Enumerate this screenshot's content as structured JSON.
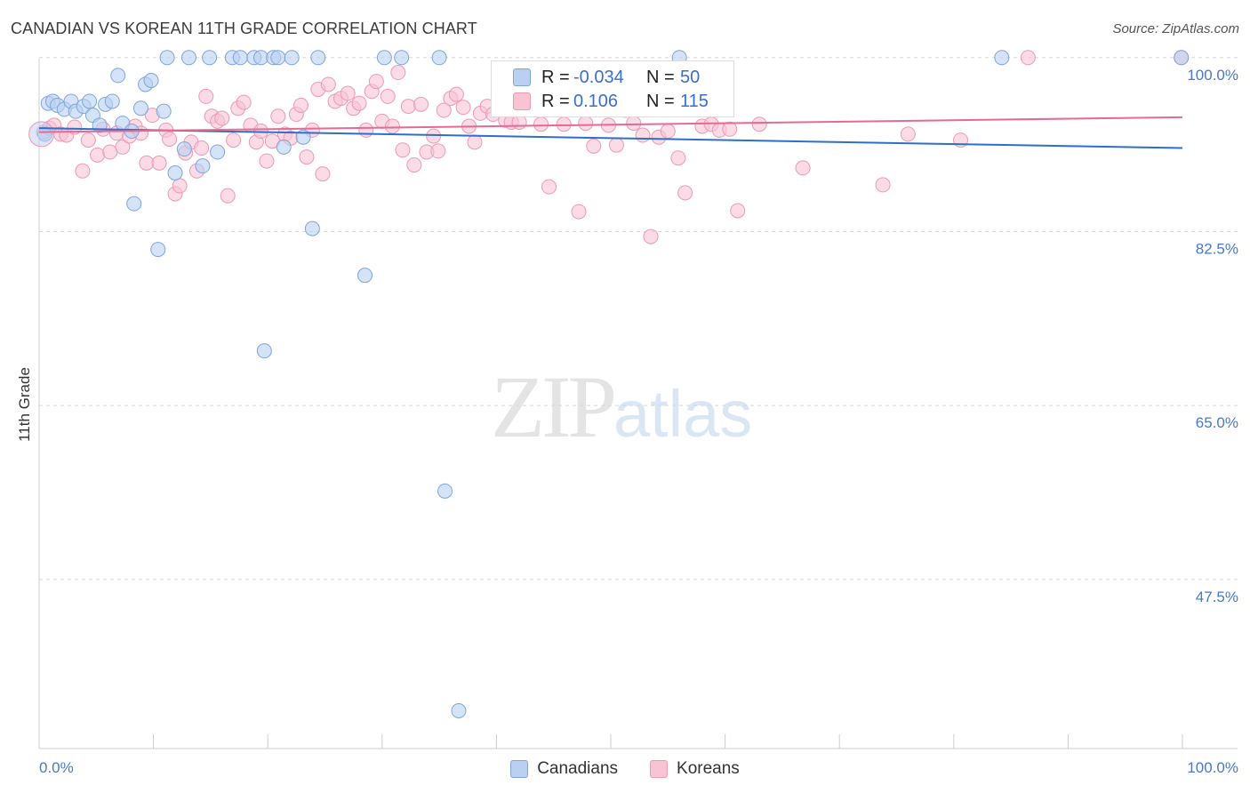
{
  "header": {
    "title": "CANADIAN VS KOREAN 11TH GRADE CORRELATION CHART",
    "source": "Source: ZipAtlas.com"
  },
  "watermark": {
    "zip": "ZIP",
    "atlas": "atlas"
  },
  "legend": {
    "canadians": {
      "r_label": "R =",
      "r_value": "-0.034",
      "n_label": "N =",
      "n_value": "50"
    },
    "koreans": {
      "r_label": "R =",
      "r_value": "0.106",
      "n_label": "N =",
      "n_value": "115"
    }
  },
  "bottom_legend": {
    "canadians": "Canadians",
    "koreans": "Koreans"
  },
  "colors": {
    "canadians_fill": "#b9d0f2",
    "canadians_stroke": "#7fa5dc",
    "canadians_line": "#2f6fcc",
    "koreans_fill": "#f8c3d3",
    "koreans_stroke": "#ec9ab4",
    "koreans_line": "#e56b93",
    "tick_text": "#4a78c8",
    "grid": "#d8d8d8"
  },
  "chart_data": {
    "type": "scatter",
    "title": "CANADIAN VS KOREAN 11TH GRADE CORRELATION CHART",
    "xlabel": "",
    "ylabel": "11th Grade",
    "xlim": [
      0,
      100
    ],
    "ylim": [
      30.5,
      101.5
    ],
    "x_tick_labels": [
      "0.0%",
      "100.0%"
    ],
    "y_ticks": [
      {
        "value": 100.0,
        "label": "100.0%"
      },
      {
        "value": 82.5,
        "label": "82.5%"
      },
      {
        "value": 65.0,
        "label": "65.0%"
      },
      {
        "value": 47.5,
        "label": "47.5%"
      }
    ],
    "trend_lines": [
      {
        "series": "Canadians",
        "start": [
          0,
          92.9
        ],
        "end": [
          100,
          90.9
        ]
      },
      {
        "series": "Koreans",
        "start": [
          0,
          92.5
        ],
        "end": [
          100,
          94.0
        ]
      }
    ],
    "series": [
      {
        "name": "Canadians",
        "points": [
          [
            0.5,
            92.3
          ],
          [
            0.8,
            95.4
          ],
          [
            1.2,
            95.6
          ],
          [
            1.6,
            95.2
          ],
          [
            2.2,
            94.8
          ],
          [
            2.8,
            95.6
          ],
          [
            3.2,
            94.6
          ],
          [
            3.9,
            95.1
          ],
          [
            4.4,
            95.6
          ],
          [
            4.7,
            94.2
          ],
          [
            5.3,
            93.2
          ],
          [
            5.8,
            95.3
          ],
          [
            6.4,
            95.6
          ],
          [
            6.9,
            98.2
          ],
          [
            7.3,
            93.4
          ],
          [
            8.1,
            92.6
          ],
          [
            8.3,
            85.3
          ],
          [
            8.9,
            94.9
          ],
          [
            9.3,
            97.3
          ],
          [
            9.8,
            97.7
          ],
          [
            10.4,
            80.7
          ],
          [
            10.9,
            94.6
          ],
          [
            11.2,
            100.0
          ],
          [
            11.9,
            88.4
          ],
          [
            12.7,
            90.8
          ],
          [
            13.1,
            100.0
          ],
          [
            14.3,
            89.1
          ],
          [
            14.9,
            100.0
          ],
          [
            15.6,
            90.5
          ],
          [
            16.9,
            100.0
          ],
          [
            17.6,
            100.0
          ],
          [
            18.8,
            100.0
          ],
          [
            19.4,
            100.0
          ],
          [
            19.7,
            70.5
          ],
          [
            20.5,
            100.0
          ],
          [
            20.9,
            100.0
          ],
          [
            21.4,
            91.0
          ],
          [
            22.1,
            100.0
          ],
          [
            23.1,
            92.0
          ],
          [
            23.9,
            82.8
          ],
          [
            24.4,
            100.0
          ],
          [
            28.5,
            78.1
          ],
          [
            30.2,
            100.0
          ],
          [
            31.7,
            100.0
          ],
          [
            35.0,
            100.0
          ],
          [
            35.5,
            56.4
          ],
          [
            36.7,
            34.3
          ],
          [
            56.0,
            100.0
          ],
          [
            84.2,
            100.0
          ],
          [
            99.9,
            100.0
          ]
        ]
      },
      {
        "name": "Koreans",
        "points": [
          [
            0.4,
            92.5
          ],
          [
            0.9,
            92.9
          ],
          [
            1.3,
            93.2
          ],
          [
            1.9,
            92.3
          ],
          [
            2.4,
            92.2
          ],
          [
            3.1,
            93.0
          ],
          [
            3.8,
            88.6
          ],
          [
            4.3,
            91.7
          ],
          [
            5.1,
            90.2
          ],
          [
            5.6,
            92.8
          ],
          [
            6.2,
            90.5
          ],
          [
            6.8,
            92.4
          ],
          [
            7.3,
            91.0
          ],
          [
            7.9,
            92.1
          ],
          [
            8.4,
            93.1
          ],
          [
            8.9,
            92.4
          ],
          [
            9.4,
            89.4
          ],
          [
            9.9,
            94.2
          ],
          [
            10.5,
            89.4
          ],
          [
            11.1,
            92.7
          ],
          [
            11.4,
            91.8
          ],
          [
            11.9,
            86.3
          ],
          [
            12.3,
            87.1
          ],
          [
            12.8,
            90.4
          ],
          [
            13.3,
            91.5
          ],
          [
            13.8,
            88.6
          ],
          [
            14.2,
            90.9
          ],
          [
            14.6,
            96.1
          ],
          [
            15.1,
            94.1
          ],
          [
            15.6,
            93.6
          ],
          [
            16.0,
            93.9
          ],
          [
            16.5,
            86.1
          ],
          [
            17.0,
            91.7
          ],
          [
            17.4,
            94.9
          ],
          [
            17.9,
            95.5
          ],
          [
            18.5,
            93.2
          ],
          [
            19.0,
            91.5
          ],
          [
            19.4,
            92.6
          ],
          [
            19.9,
            89.6
          ],
          [
            20.4,
            91.6
          ],
          [
            20.9,
            94.1
          ],
          [
            21.5,
            92.3
          ],
          [
            22.0,
            91.9
          ],
          [
            22.5,
            94.3
          ],
          [
            22.9,
            95.2
          ],
          [
            23.4,
            90.0
          ],
          [
            23.9,
            92.7
          ],
          [
            24.4,
            96.8
          ],
          [
            24.8,
            88.3
          ],
          [
            25.3,
            97.3
          ],
          [
            25.9,
            95.6
          ],
          [
            26.4,
            95.9
          ],
          [
            27.0,
            96.4
          ],
          [
            27.5,
            94.9
          ],
          [
            28.0,
            95.4
          ],
          [
            28.6,
            92.7
          ],
          [
            29.1,
            96.6
          ],
          [
            29.5,
            97.6
          ],
          [
            30.0,
            93.6
          ],
          [
            30.5,
            96.1
          ],
          [
            30.9,
            93.1
          ],
          [
            31.4,
            98.5
          ],
          [
            31.8,
            90.7
          ],
          [
            32.3,
            95.1
          ],
          [
            32.8,
            89.2
          ],
          [
            33.4,
            95.3
          ],
          [
            33.9,
            90.5
          ],
          [
            34.5,
            92.1
          ],
          [
            34.9,
            90.6
          ],
          [
            35.4,
            94.7
          ],
          [
            36.0,
            95.9
          ],
          [
            36.5,
            96.3
          ],
          [
            37.1,
            95.0
          ],
          [
            37.6,
            93.1
          ],
          [
            38.1,
            91.5
          ],
          [
            38.6,
            94.4
          ],
          [
            39.2,
            95.1
          ],
          [
            39.7,
            94.3
          ],
          [
            40.3,
            96.2
          ],
          [
            40.8,
            93.7
          ],
          [
            41.3,
            93.5
          ],
          [
            42.0,
            93.5
          ],
          [
            42.6,
            94.9
          ],
          [
            43.2,
            95.4
          ],
          [
            43.9,
            93.3
          ],
          [
            44.6,
            87.0
          ],
          [
            45.2,
            97.1
          ],
          [
            45.9,
            93.3
          ],
          [
            46.5,
            95.6
          ],
          [
            47.2,
            84.5
          ],
          [
            47.8,
            93.4
          ],
          [
            48.5,
            91.1
          ],
          [
            49.1,
            95.5
          ],
          [
            49.8,
            93.2
          ],
          [
            50.5,
            91.2
          ],
          [
            51.3,
            94.7
          ],
          [
            52.0,
            93.4
          ],
          [
            52.8,
            92.2
          ],
          [
            53.5,
            82.0
          ],
          [
            54.2,
            92.0
          ],
          [
            55.0,
            92.6
          ],
          [
            55.9,
            89.9
          ],
          [
            56.5,
            86.4
          ],
          [
            57.2,
            95.4
          ],
          [
            58.0,
            93.1
          ],
          [
            58.8,
            93.3
          ],
          [
            59.5,
            92.7
          ],
          [
            60.4,
            92.8
          ],
          [
            61.1,
            84.6
          ],
          [
            63.0,
            93.3
          ],
          [
            66.8,
            88.9
          ],
          [
            73.8,
            87.2
          ],
          [
            76.0,
            92.3
          ],
          [
            80.6,
            91.7
          ],
          [
            86.5,
            100.0
          ],
          [
            99.9,
            100.0
          ]
        ]
      }
    ]
  }
}
